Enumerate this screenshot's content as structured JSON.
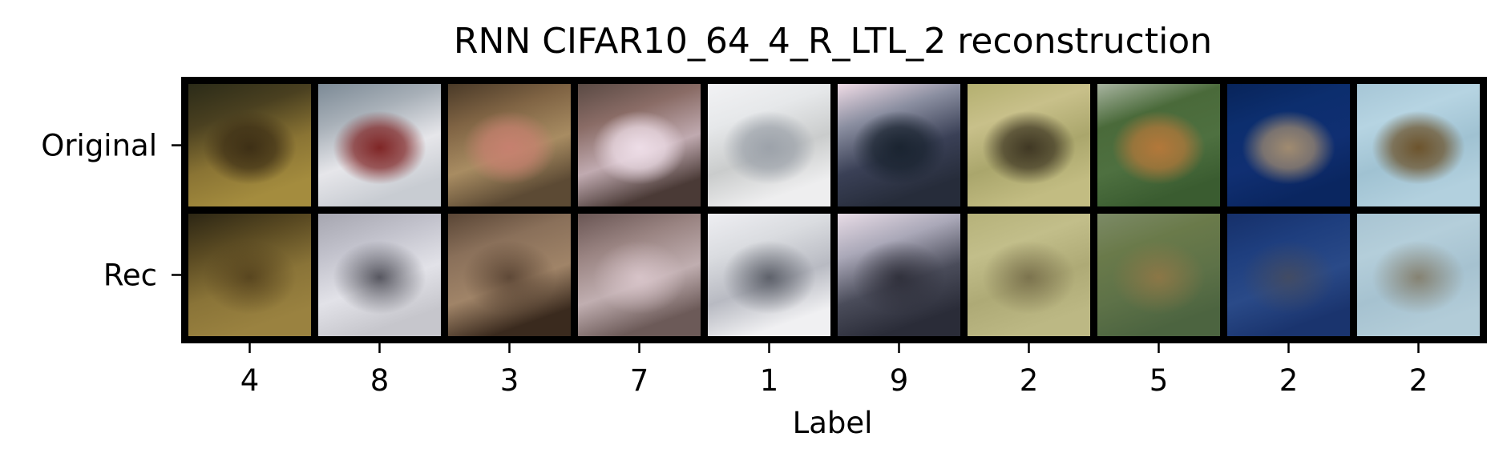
{
  "chart_data": {
    "type": "heatmap",
    "title": "RNN CIFAR10_64_4_R_LTL_2 reconstruction",
    "xlabel": "Label",
    "ylabel": "",
    "row_labels": [
      "Original",
      "Rec"
    ],
    "categories": [
      "4",
      "8",
      "3",
      "7",
      "1",
      "9",
      "2",
      "5",
      "2",
      "2"
    ],
    "grid": false,
    "legend": "none",
    "tiles": [
      {
        "label": "4",
        "original": {
          "colors": [
            "#2b2b18",
            "#4a4020",
            "#8a7434",
            "#a48c3e"
          ],
          "subject": "#3a2c14"
        },
        "rec": {
          "colors": [
            "#2c2614",
            "#5a4a22",
            "#8a7438",
            "#9a8240"
          ],
          "subject": "#4a3818"
        }
      },
      {
        "label": "8",
        "original": {
          "colors": [
            "#7c8a96",
            "#a8b0b8",
            "#e6e6ea",
            "#c8ccd2"
          ],
          "subject": "#7a1c1c"
        },
        "rec": {
          "colors": [
            "#a6a6b0",
            "#c2c2cc",
            "#e2e2e8",
            "#c6c6cc"
          ],
          "subject": "#2a2a34"
        }
      },
      {
        "label": "3",
        "original": {
          "colors": [
            "#4a3a28",
            "#806444",
            "#a88c62",
            "#5c4a34"
          ],
          "subject": "#c88070"
        },
        "rec": {
          "colors": [
            "#5a4636",
            "#8a705a",
            "#a08468",
            "#3a2a1e"
          ],
          "subject": "#4a3628"
        }
      },
      {
        "label": "7",
        "original": {
          "colors": [
            "#5a4a44",
            "#8a6c66",
            "#c0aab0",
            "#4a3a36"
          ],
          "subject": "#f0e0ea"
        },
        "rec": {
          "colors": [
            "#6a5654",
            "#9a8482",
            "#c0aeb0",
            "#6c5a58"
          ],
          "subject": "#e0ccd2"
        }
      },
      {
        "label": "1",
        "original": {
          "colors": [
            "#f2f2f4",
            "#e6e8ea",
            "#cacccc",
            "#eeeeef"
          ],
          "subject": "#9aa0a8"
        },
        "rec": {
          "colors": [
            "#eeeef2",
            "#dadce0",
            "#b8bac2",
            "#f0f0f2"
          ],
          "subject": "#3e424c"
        }
      },
      {
        "label": "9",
        "original": {
          "colors": [
            "#f0dce6",
            "#8a8ea0",
            "#3a4056",
            "#262c3a"
          ],
          "subject": "#18222e"
        },
        "rec": {
          "colors": [
            "#e8dce6",
            "#aaa8b8",
            "#4a4c5a",
            "#2a2c38"
          ],
          "subject": "#24242e"
        }
      },
      {
        "label": "2",
        "original": {
          "colors": [
            "#b4b070",
            "#c8c08a",
            "#aaa66c",
            "#c2bc82"
          ],
          "subject": "#3a3220"
        },
        "rec": {
          "colors": [
            "#b6b27a",
            "#c2be8a",
            "#aeaa76",
            "#bcb884"
          ],
          "subject": "#6a6040"
        }
      },
      {
        "label": "5",
        "original": {
          "colors": [
            "#a8b4a0",
            "#4a6a3a",
            "#4e7040",
            "#3a5c30"
          ],
          "subject": "#b8783a"
        },
        "rec": {
          "colors": [
            "#7c8a66",
            "#6a7a4a",
            "#5e7248",
            "#4c6440"
          ],
          "subject": "#9a7846"
        }
      },
      {
        "label": "2",
        "original": {
          "colors": [
            "#08245a",
            "#0c2e6e",
            "#102f72",
            "#0a2660"
          ],
          "subject": "#a89070"
        },
        "rec": {
          "colors": [
            "#16306a",
            "#1e3e7e",
            "#2a4a88",
            "#1a346e"
          ],
          "subject": "#4a4c58"
        }
      },
      {
        "label": "2",
        "original": {
          "colors": [
            "#a6c6d6",
            "#b6d4e2",
            "#a0c2d2",
            "#b2d0de"
          ],
          "subject": "#6a4e24"
        },
        "rec": {
          "colors": [
            "#a8c4d2",
            "#b4ceda",
            "#a6c2d0",
            "#b2ccd8"
          ],
          "subject": "#7a6c52"
        }
      }
    ]
  }
}
